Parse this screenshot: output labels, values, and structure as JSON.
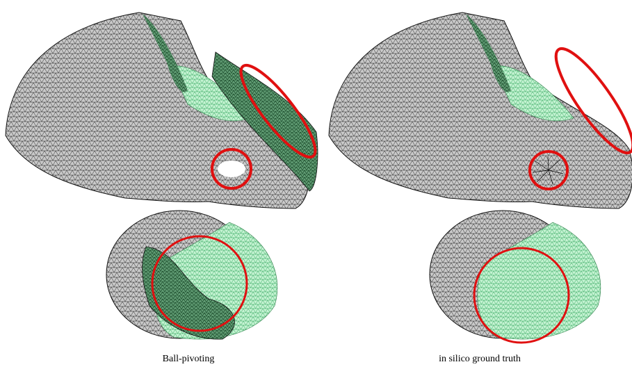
{
  "captions": [
    "Ball-pivoting",
    "in silico ground truth"
  ]
}
